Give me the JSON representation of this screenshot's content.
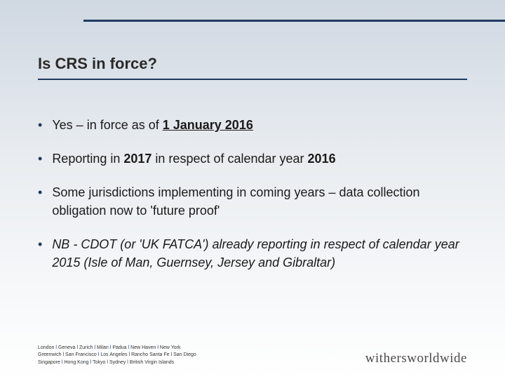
{
  "colors": {
    "accent": "#1f3a5f",
    "text": "#1a1a1a",
    "background_top": "#d0d8e2",
    "background_bottom": "#ffffff"
  },
  "title": "Is CRS in force?",
  "bullets": [
    {
      "segments": [
        {
          "text": "Yes – in force as of "
        },
        {
          "text": "1 January 2016",
          "bold": true,
          "underline": true
        }
      ]
    },
    {
      "segments": [
        {
          "text": "Reporting in "
        },
        {
          "text": "2017",
          "bold": true
        },
        {
          "text": " in respect of calendar year "
        },
        {
          "text": "2016",
          "bold": true
        }
      ]
    },
    {
      "segments": [
        {
          "text": "Some jurisdictions implementing in coming years – data collection obligation now to 'future proof'"
        }
      ]
    },
    {
      "segments": [
        {
          "text": "NB - CDOT (or 'UK FATCA') already reporting in respect of calendar year 2015 (Isle of Man, Guernsey, Jersey and Gibraltar)",
          "italic": true
        }
      ]
    }
  ],
  "footer": {
    "line1": [
      "London",
      "Geneva",
      "Zurich",
      "Milan",
      "Padua",
      "New Haven",
      "New York"
    ],
    "line2": [
      "Greenwich",
      "San Francisco",
      "Los Angeles",
      "Rancho Santa Fe",
      "San Diego"
    ],
    "line3": [
      "Singapore",
      "Hong Kong",
      "Tokyo",
      "Sydney",
      "British Virgin Islands"
    ]
  },
  "logo": "withersworldwide"
}
